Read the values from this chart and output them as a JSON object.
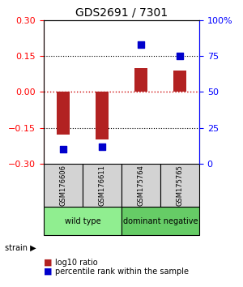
{
  "title": "GDS2691 / 7301",
  "samples": [
    "GSM176606",
    "GSM176611",
    "GSM175764",
    "GSM175765"
  ],
  "log10_ratio": [
    -0.18,
    -0.2,
    0.1,
    0.09
  ],
  "percentile_rank": [
    10,
    12,
    83,
    75
  ],
  "groups": [
    {
      "label": "wild type",
      "samples": [
        0,
        1
      ],
      "color": "#90ee90"
    },
    {
      "label": "dominant negative",
      "samples": [
        2,
        3
      ],
      "color": "#66cc66"
    }
  ],
  "ylim_left": [
    -0.3,
    0.3
  ],
  "ylim_right": [
    0,
    100
  ],
  "yticks_left": [
    -0.3,
    -0.15,
    0,
    0.15,
    0.3
  ],
  "yticks_right": [
    0,
    25,
    50,
    75,
    100
  ],
  "bar_color": "#b22222",
  "dot_color": "#0000cc",
  "hline_color": "#cc0000",
  "hline_style": ":",
  "grid_style": ":",
  "background_color": "#ffffff",
  "plot_bg": "#ffffff",
  "legend_red_label": "log10 ratio",
  "legend_blue_label": "percentile rank within the sample",
  "strain_label": "strain"
}
